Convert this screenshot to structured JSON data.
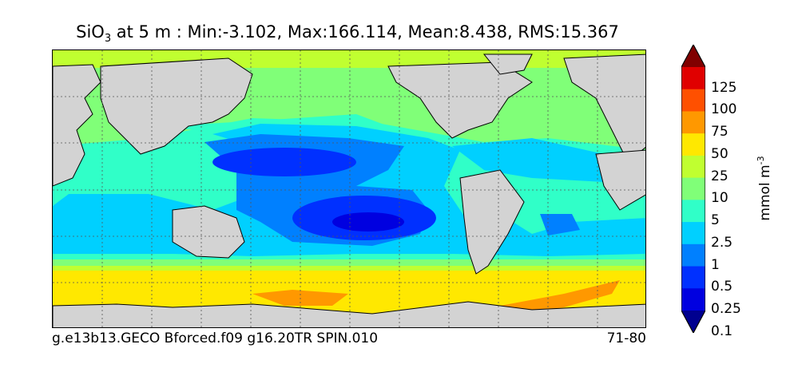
{
  "title": {
    "variable": "SiO",
    "subscript": "3",
    "rest": " at 5 m : Min:-3.102, Max:166.114, Mean:8.438, RMS:15.367"
  },
  "footer": {
    "case_name": "g.e13b13.GECO Bforced.f09 g16.20TR SPIN.010",
    "years": "71-80"
  },
  "colorbar": {
    "unit_base": "mmol m",
    "unit_exp": "-3",
    "tick_labels": [
      "125",
      "100",
      "75",
      "50",
      "25",
      "10",
      "5",
      "2.5",
      "1",
      "0.5",
      "0.25",
      "0.1"
    ],
    "level_colors": [
      "#00008f",
      "#0000e0",
      "#0030ff",
      "#0080ff",
      "#00d0ff",
      "#30ffc8",
      "#80ff78",
      "#c0ff30",
      "#ffe800",
      "#ff9800",
      "#ff5000",
      "#e00000",
      "#800000"
    ]
  },
  "map": {
    "land_color": "#d3d3d3",
    "gridlines": "dotted"
  }
}
